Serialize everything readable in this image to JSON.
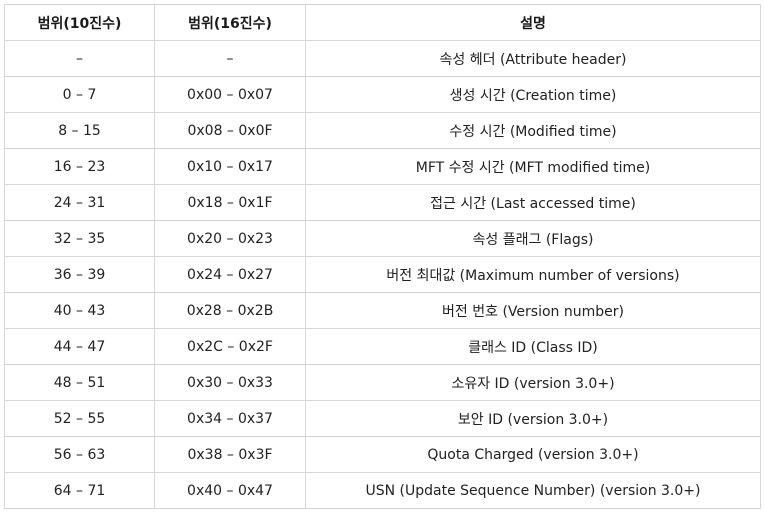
{
  "table": {
    "headers": [
      "범위(10진수)",
      "범위(16진수)",
      "설명"
    ],
    "rows": [
      [
        "–",
        "–",
        "속성 헤더 (Attribute header)"
      ],
      [
        "0 – 7",
        "0x00 – 0x07",
        "생성 시간 (Creation time)"
      ],
      [
        "8 – 15",
        "0x08 – 0x0F",
        "수정 시간 (Modified time)"
      ],
      [
        "16 – 23",
        "0x10 – 0x17",
        "MFT 수정 시간 (MFT modified time)"
      ],
      [
        "24 – 31",
        "0x18 – 0x1F",
        "접근 시간 (Last accessed time)"
      ],
      [
        "32 – 35",
        "0x20 – 0x23",
        "속성 플래그 (Flags)"
      ],
      [
        "36 – 39",
        "0x24 – 0x27",
        "버전 최대값 (Maximum number of versions)"
      ],
      [
        "40 – 43",
        "0x28 – 0x2B",
        "버전 번호 (Version number)"
      ],
      [
        "44 – 47",
        "0x2C – 0x2F",
        "클래스 ID (Class ID)"
      ],
      [
        "48 – 51",
        "0x30 – 0x33",
        "소유자 ID (version 3.0+)"
      ],
      [
        "52 – 55",
        "0x34 – 0x37",
        "보안 ID (version 3.0+)"
      ],
      [
        "56 – 63",
        "0x38 – 0x3F",
        "Quota Charged (version 3.0+)"
      ],
      [
        "64 – 71",
        "0x40 – 0x47",
        "USN (Update Sequence Number) (version 3.0+)"
      ]
    ]
  },
  "colors": {
    "border": "#d7d7d7",
    "text": "#222222",
    "background": "#ffffff"
  }
}
